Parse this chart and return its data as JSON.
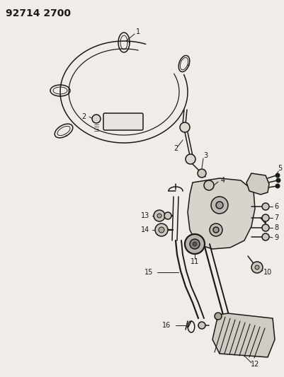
{
  "title": "92714 2700",
  "bg_color": "#f0ede8",
  "line_color": "#1a1a1a",
  "figsize": [
    4.02,
    5.33
  ],
  "dpi": 100,
  "title_fontsize": 10,
  "label_fontsize": 7
}
